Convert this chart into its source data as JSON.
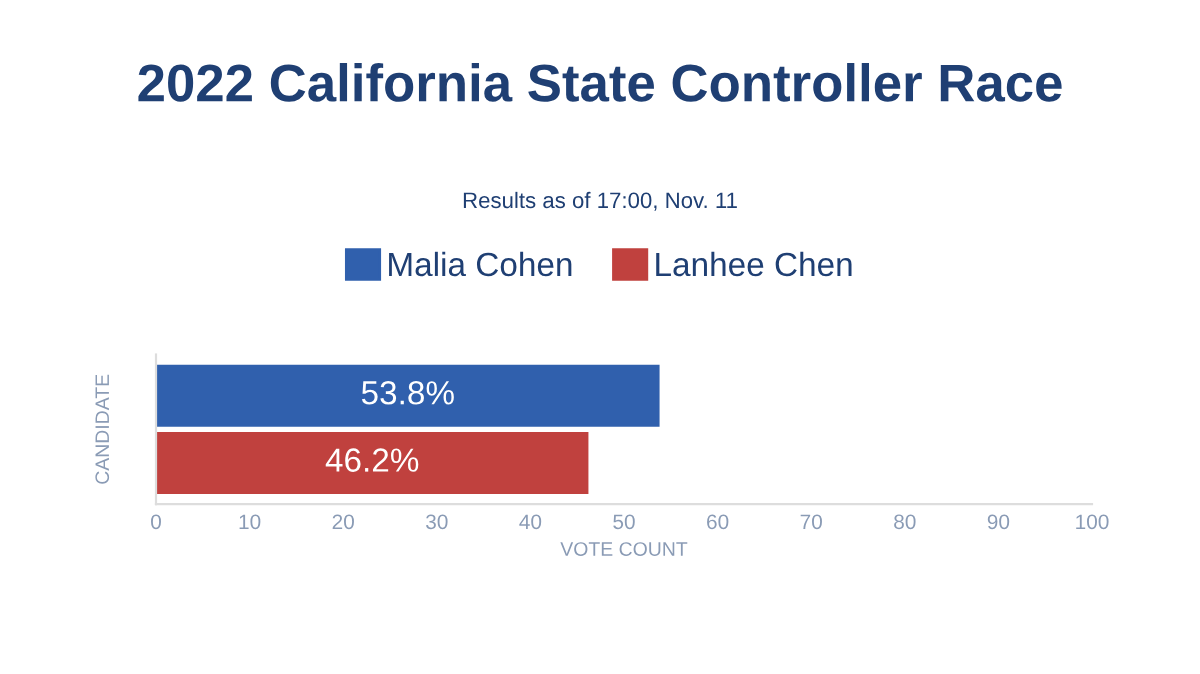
{
  "chart_data": {
    "type": "bar",
    "orientation": "horizontal",
    "title": "2022 California State Controller Race",
    "subtitle": "Results as of 17:00, Nov. 11",
    "xlabel": "VOTE COUNT",
    "ylabel": "CANDIDATE",
    "categories": [
      null
    ],
    "series": [
      {
        "name": "Malia Cohen",
        "color": "#3060ad",
        "values": [
          53.8
        ],
        "value_labels": [
          "53.8%"
        ]
      },
      {
        "name": "Lanhee Chen",
        "color": "#c0413e",
        "values": [
          46.2
        ],
        "value_labels": [
          "46.2%"
        ]
      }
    ],
    "xlim": [
      0,
      100
    ],
    "xticks": [
      0,
      10,
      20,
      30,
      40,
      50,
      60,
      70,
      80,
      90,
      100
    ],
    "grid": false,
    "legend": "top"
  }
}
